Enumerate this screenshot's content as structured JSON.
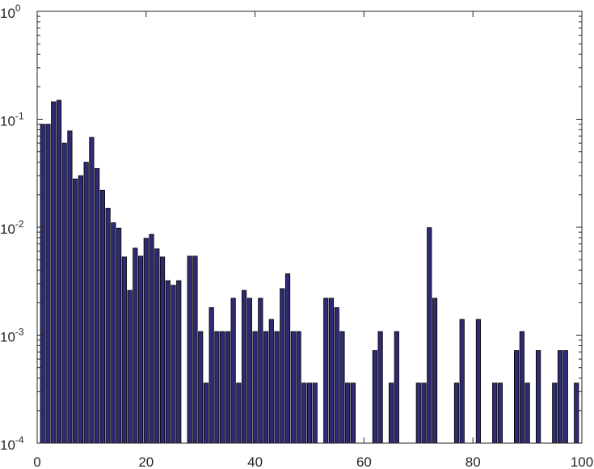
{
  "chart_data": {
    "type": "bar",
    "title": "",
    "xlabel": "",
    "ylabel": "",
    "xlim": [
      0,
      100
    ],
    "ylim": [
      0.0001,
      1
    ],
    "yscale": "log",
    "grid": false,
    "box": true,
    "bar_color": "#2e2a73",
    "bar_edge_color": "#000000",
    "x_ticks": [
      {
        "value": 0,
        "label": "0"
      },
      {
        "value": 20,
        "label": "20"
      },
      {
        "value": 40,
        "label": "40"
      },
      {
        "value": 60,
        "label": "60"
      },
      {
        "value": 80,
        "label": "80"
      },
      {
        "value": 100,
        "label": "100"
      }
    ],
    "y_ticks": [
      {
        "value": 0.0001,
        "base": "10",
        "exp": "-4"
      },
      {
        "value": 0.001,
        "base": "10",
        "exp": "-3"
      },
      {
        "value": 0.01,
        "base": "10",
        "exp": "-2"
      },
      {
        "value": 0.1,
        "base": "10",
        "exp": "-1"
      },
      {
        "value": 1,
        "base": "10",
        "exp": "0"
      }
    ],
    "x": [
      1,
      2,
      3,
      4,
      5,
      6,
      7,
      8,
      9,
      10,
      11,
      12,
      13,
      14,
      15,
      16,
      17,
      18,
      19,
      20,
      21,
      22,
      23,
      24,
      25,
      26,
      27,
      28,
      29,
      30,
      31,
      32,
      33,
      34,
      35,
      36,
      37,
      38,
      39,
      40,
      41,
      42,
      43,
      44,
      45,
      46,
      47,
      48,
      49,
      50,
      51,
      52,
      53,
      54,
      55,
      56,
      57,
      58,
      59,
      60,
      61,
      62,
      63,
      64,
      65,
      66,
      67,
      68,
      69,
      70,
      71,
      72,
      73,
      74,
      75,
      76,
      77,
      78,
      79,
      80,
      81,
      82,
      83,
      84,
      85,
      86,
      87,
      88,
      89,
      90,
      91,
      92,
      93,
      94,
      95,
      96,
      97,
      98,
      99
    ],
    "values": [
      0.09,
      0.09,
      0.145,
      0.15,
      0.06,
      0.078,
      0.028,
      0.03,
      0.04,
      0.068,
      0.035,
      0.022,
      0.015,
      0.011,
      0.0098,
      0.0053,
      0.0026,
      0.0064,
      0.0054,
      0.0079,
      0.0086,
      0.0063,
      0.0053,
      0.0032,
      0.0029,
      0.0032,
      0,
      0.0054,
      0.0054,
      0.00108,
      0.00036,
      0.0018,
      0.00108,
      0.00108,
      0.00108,
      0.0022,
      0.00036,
      0.0026,
      0.0022,
      0.00108,
      0.0022,
      0.00108,
      0.0014,
      0.00108,
      0.0027,
      0.0037,
      0.00108,
      0.00108,
      0.00036,
      0.00036,
      0.00036,
      0,
      0.0022,
      0.0022,
      0.0018,
      0.00108,
      0.00036,
      0.00036,
      0,
      0,
      0,
      0.00072,
      0.00108,
      0,
      0.00036,
      0.00108,
      0,
      0,
      0,
      0.00036,
      0.00036,
      0.0099,
      0.0022,
      0,
      0,
      0,
      0.00036,
      0.0014,
      0,
      0,
      0.0014,
      0,
      0,
      0.00036,
      0.00036,
      0,
      0,
      0.00072,
      0.00108,
      0.00036,
      0,
      0.00072,
      0,
      0,
      0.00036,
      0.00072,
      0.00072,
      0,
      0.00036
    ]
  }
}
